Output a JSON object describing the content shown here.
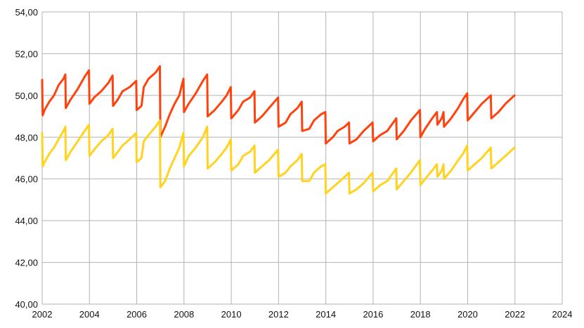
{
  "chart_data": {
    "type": "line",
    "title": "",
    "xlabel": "",
    "ylabel": "",
    "xlim": [
      2002,
      2024
    ],
    "ylim": [
      40,
      54
    ],
    "x_ticks": [
      "2002",
      "2004",
      "2006",
      "2008",
      "2010",
      "2012",
      "2014",
      "2016",
      "2018",
      "2020",
      "2022",
      "2024"
    ],
    "y_ticks": [
      "40,00",
      "42,00",
      "44,00",
      "46,00",
      "48,00",
      "50,00",
      "52,00",
      "54,00"
    ],
    "grid": true,
    "legend": "none",
    "series": [
      {
        "color": "#ff420e",
        "points": [
          [
            2002.0,
            50.75
          ],
          [
            2002.02,
            49.05
          ],
          [
            2002.1,
            49.3
          ],
          [
            2002.3,
            49.7
          ],
          [
            2002.5,
            50.0
          ],
          [
            2002.7,
            50.5
          ],
          [
            2002.9,
            50.8
          ],
          [
            2002.98,
            51.0
          ],
          [
            2003.0,
            49.4
          ],
          [
            2003.2,
            49.8
          ],
          [
            2003.5,
            50.3
          ],
          [
            2003.8,
            50.9
          ],
          [
            2003.98,
            51.2
          ],
          [
            2004.0,
            49.6
          ],
          [
            2004.2,
            49.9
          ],
          [
            2004.5,
            50.2
          ],
          [
            2004.8,
            50.6
          ],
          [
            2004.98,
            50.95
          ],
          [
            2005.0,
            49.5
          ],
          [
            2005.2,
            49.8
          ],
          [
            2005.4,
            50.2
          ],
          [
            2005.7,
            50.4
          ],
          [
            2005.98,
            50.7
          ],
          [
            2006.0,
            49.3
          ],
          [
            2006.2,
            49.5
          ],
          [
            2006.3,
            50.4
          ],
          [
            2006.5,
            50.8
          ],
          [
            2006.8,
            51.1
          ],
          [
            2006.98,
            51.4
          ],
          [
            2007.0,
            48.0
          ],
          [
            2007.2,
            48.5
          ],
          [
            2007.4,
            49.1
          ],
          [
            2007.6,
            49.6
          ],
          [
            2007.8,
            50.0
          ],
          [
            2007.98,
            50.8
          ],
          [
            2008.0,
            49.2
          ],
          [
            2008.2,
            49.6
          ],
          [
            2008.5,
            50.1
          ],
          [
            2008.8,
            50.7
          ],
          [
            2008.98,
            51.0
          ],
          [
            2009.0,
            49.0
          ],
          [
            2009.3,
            49.3
          ],
          [
            2009.6,
            49.7
          ],
          [
            2009.8,
            50.0
          ],
          [
            2009.98,
            50.4
          ],
          [
            2010.0,
            48.9
          ],
          [
            2010.3,
            49.3
          ],
          [
            2010.5,
            49.7
          ],
          [
            2010.8,
            49.9
          ],
          [
            2010.98,
            50.2
          ],
          [
            2011.0,
            48.7
          ],
          [
            2011.3,
            49.0
          ],
          [
            2011.6,
            49.4
          ],
          [
            2011.98,
            49.9
          ],
          [
            2012.0,
            48.5
          ],
          [
            2012.3,
            48.7
          ],
          [
            2012.5,
            49.1
          ],
          [
            2012.8,
            49.4
          ],
          [
            2012.98,
            49.7
          ],
          [
            2013.0,
            48.3
          ],
          [
            2013.3,
            48.4
          ],
          [
            2013.5,
            48.8
          ],
          [
            2013.8,
            49.1
          ],
          [
            2013.98,
            49.2
          ],
          [
            2014.0,
            47.7
          ],
          [
            2014.3,
            48.0
          ],
          [
            2014.5,
            48.3
          ],
          [
            2014.8,
            48.5
          ],
          [
            2014.98,
            48.7
          ],
          [
            2015.0,
            47.7
          ],
          [
            2015.3,
            47.9
          ],
          [
            2015.6,
            48.3
          ],
          [
            2015.98,
            48.7
          ],
          [
            2016.0,
            47.8
          ],
          [
            2016.3,
            48.1
          ],
          [
            2016.6,
            48.3
          ],
          [
            2016.98,
            48.9
          ],
          [
            2017.0,
            47.9
          ],
          [
            2017.3,
            48.3
          ],
          [
            2017.6,
            48.8
          ],
          [
            2017.98,
            49.3
          ],
          [
            2018.0,
            48.0
          ],
          [
            2018.2,
            48.4
          ],
          [
            2018.5,
            48.9
          ],
          [
            2018.7,
            49.2
          ],
          [
            2018.72,
            48.6
          ],
          [
            2018.9,
            48.9
          ],
          [
            2018.98,
            49.2
          ],
          [
            2019.0,
            48.5
          ],
          [
            2019.3,
            48.9
          ],
          [
            2019.6,
            49.4
          ],
          [
            2019.8,
            49.8
          ],
          [
            2019.98,
            50.1
          ],
          [
            2020.0,
            48.8
          ],
          [
            2020.3,
            49.2
          ],
          [
            2020.6,
            49.6
          ],
          [
            2020.98,
            50.0
          ],
          [
            2021.0,
            48.9
          ],
          [
            2021.3,
            49.2
          ],
          [
            2021.6,
            49.6
          ],
          [
            2021.98,
            50.0
          ]
        ]
      },
      {
        "color": "#ffd320",
        "points": [
          [
            2002.0,
            48.2
          ],
          [
            2002.02,
            46.6
          ],
          [
            2002.1,
            46.8
          ],
          [
            2002.3,
            47.2
          ],
          [
            2002.5,
            47.5
          ],
          [
            2002.7,
            47.9
          ],
          [
            2002.9,
            48.3
          ],
          [
            2002.98,
            48.5
          ],
          [
            2003.0,
            46.9
          ],
          [
            2003.2,
            47.3
          ],
          [
            2003.5,
            47.8
          ],
          [
            2003.8,
            48.3
          ],
          [
            2003.98,
            48.6
          ],
          [
            2004.0,
            47.1
          ],
          [
            2004.2,
            47.4
          ],
          [
            2004.5,
            47.8
          ],
          [
            2004.8,
            48.1
          ],
          [
            2004.98,
            48.4
          ],
          [
            2005.0,
            47.0
          ],
          [
            2005.2,
            47.3
          ],
          [
            2005.4,
            47.6
          ],
          [
            2005.7,
            47.9
          ],
          [
            2005.98,
            48.2
          ],
          [
            2006.0,
            46.8
          ],
          [
            2006.2,
            47.0
          ],
          [
            2006.3,
            47.8
          ],
          [
            2006.5,
            48.1
          ],
          [
            2006.8,
            48.5
          ],
          [
            2006.98,
            48.8
          ],
          [
            2007.0,
            45.6
          ],
          [
            2007.2,
            45.9
          ],
          [
            2007.4,
            46.5
          ],
          [
            2007.6,
            47.0
          ],
          [
            2007.8,
            47.5
          ],
          [
            2007.98,
            48.2
          ],
          [
            2008.0,
            46.6
          ],
          [
            2008.2,
            47.1
          ],
          [
            2008.5,
            47.5
          ],
          [
            2008.8,
            48.0
          ],
          [
            2008.98,
            48.5
          ],
          [
            2009.0,
            46.5
          ],
          [
            2009.3,
            46.8
          ],
          [
            2009.6,
            47.2
          ],
          [
            2009.8,
            47.5
          ],
          [
            2009.98,
            47.9
          ],
          [
            2010.0,
            46.4
          ],
          [
            2010.3,
            46.7
          ],
          [
            2010.5,
            47.1
          ],
          [
            2010.8,
            47.3
          ],
          [
            2010.98,
            47.6
          ],
          [
            2011.0,
            46.3
          ],
          [
            2011.3,
            46.6
          ],
          [
            2011.6,
            46.9
          ],
          [
            2011.98,
            47.4
          ],
          [
            2012.0,
            46.1
          ],
          [
            2012.3,
            46.3
          ],
          [
            2012.5,
            46.6
          ],
          [
            2012.8,
            46.9
          ],
          [
            2012.98,
            47.2
          ],
          [
            2013.0,
            45.9
          ],
          [
            2013.3,
            45.9
          ],
          [
            2013.5,
            46.3
          ],
          [
            2013.8,
            46.6
          ],
          [
            2013.98,
            46.7
          ],
          [
            2014.0,
            45.3
          ],
          [
            2014.3,
            45.6
          ],
          [
            2014.5,
            45.8
          ],
          [
            2014.8,
            46.1
          ],
          [
            2014.98,
            46.3
          ],
          [
            2015.0,
            45.3
          ],
          [
            2015.3,
            45.5
          ],
          [
            2015.6,
            45.8
          ],
          [
            2015.98,
            46.3
          ],
          [
            2016.0,
            45.4
          ],
          [
            2016.3,
            45.7
          ],
          [
            2016.6,
            45.9
          ],
          [
            2016.98,
            46.5
          ],
          [
            2017.0,
            45.5
          ],
          [
            2017.3,
            45.9
          ],
          [
            2017.6,
            46.3
          ],
          [
            2017.98,
            46.9
          ],
          [
            2018.0,
            45.7
          ],
          [
            2018.2,
            46.0
          ],
          [
            2018.5,
            46.4
          ],
          [
            2018.7,
            46.7
          ],
          [
            2018.72,
            46.1
          ],
          [
            2018.9,
            46.4
          ],
          [
            2018.98,
            46.7
          ],
          [
            2019.0,
            46.0
          ],
          [
            2019.3,
            46.4
          ],
          [
            2019.6,
            46.9
          ],
          [
            2019.8,
            47.2
          ],
          [
            2019.98,
            47.6
          ],
          [
            2020.0,
            46.4
          ],
          [
            2020.3,
            46.7
          ],
          [
            2020.6,
            47.0
          ],
          [
            2020.98,
            47.5
          ],
          [
            2021.0,
            46.5
          ],
          [
            2021.3,
            46.8
          ],
          [
            2021.6,
            47.1
          ],
          [
            2021.98,
            47.5
          ]
        ]
      }
    ]
  }
}
